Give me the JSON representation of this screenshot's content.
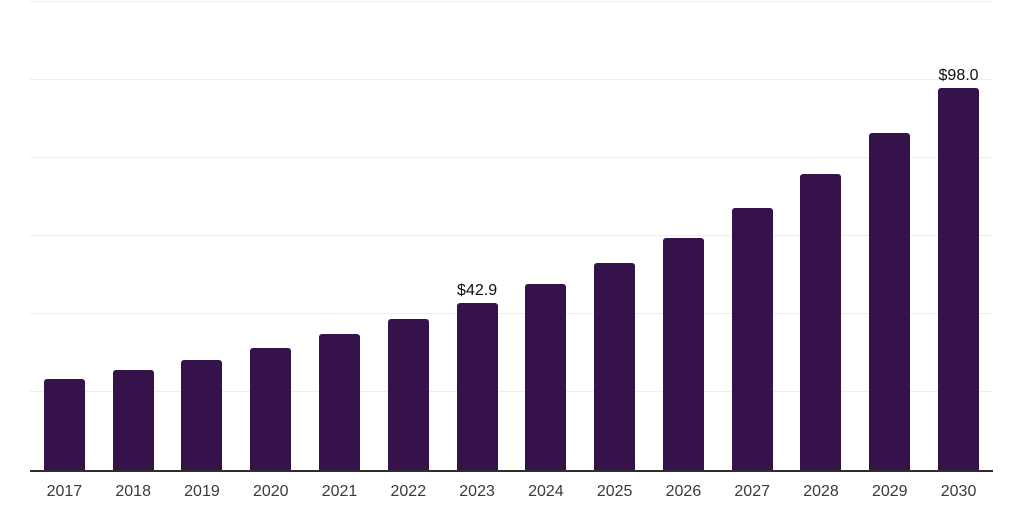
{
  "chart_data": {
    "type": "bar",
    "title": "",
    "xlabel": "",
    "ylabel": "",
    "categories": [
      "2017",
      "2018",
      "2019",
      "2020",
      "2021",
      "2022",
      "2023",
      "2024",
      "2025",
      "2026",
      "2027",
      "2028",
      "2029",
      "2030"
    ],
    "values": [
      23.4,
      25.7,
      28.3,
      31.4,
      34.8,
      38.6,
      42.9,
      47.7,
      53.2,
      59.6,
      67.3,
      76.0,
      86.3,
      98.0
    ],
    "labeled_points": [
      {
        "category": "2023",
        "label": "$42.9"
      },
      {
        "category": "2030",
        "label": "$98.0"
      }
    ],
    "ylim": [
      0,
      120
    ],
    "gridline_step": 20,
    "grid": true,
    "legend": false,
    "colors": {
      "bar": "#36124a",
      "axis_line": "#2e2e2e",
      "gridline": "#ededed",
      "value_label": "#0e0e0e",
      "tick_label": "#3a3a3a",
      "background": "#ffffff"
    }
  }
}
